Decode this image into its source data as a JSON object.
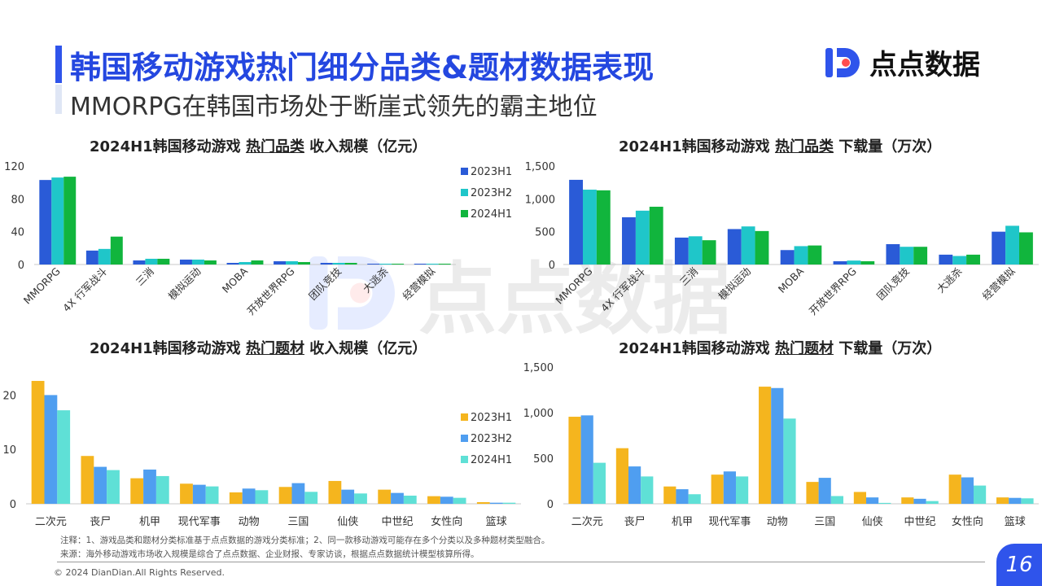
{
  "header": {
    "title": "韩国移动游戏热门细分品类&题材数据表现",
    "subtitle": "MMORPG在韩国市场处于断崖式领先的霸主地位"
  },
  "logo": {
    "text": "点点数据",
    "icon": "dd-logo-icon",
    "color": "#2f54eb"
  },
  "watermark": {
    "text": "点点数据"
  },
  "colors": {
    "blue_dark": "#2a5bd7",
    "cyan": "#1fc6c9",
    "green": "#11b53d",
    "orange": "#f5b51e",
    "blue_light": "#4f9ef0",
    "teal": "#5fe0d6"
  },
  "chart_titles": [
    {
      "pre": "2024H1韩国移动游戏 ",
      "mid": "热门品类",
      "post": " 收入规模（亿元）"
    },
    {
      "pre": "2024H1韩国移动游戏 ",
      "mid": "热门品类",
      "post": " 下载量（万次）"
    },
    {
      "pre": "2024H1韩国移动游戏 ",
      "mid": "热门题材",
      "post": " 收入规模（亿元）"
    },
    {
      "pre": "2024H1韩国移动游戏 ",
      "mid": "热门题材",
      "post": " 下载量（万次）"
    }
  ],
  "chart_data": [
    {
      "type": "bar",
      "title": "2024H1韩国移动游戏 热门品类 收入规模（亿元）",
      "categories": [
        "MMORPG",
        "4X 行军战斗",
        "三消",
        "模拟运动",
        "MOBA",
        "开放世界RPG",
        "团队竞技",
        "大逃杀",
        "经营模拟"
      ],
      "series": [
        {
          "name": "2023H1",
          "values": [
            103,
            17,
            5,
            6,
            2,
            4,
            2,
            1,
            1
          ]
        },
        {
          "name": "2023H2",
          "values": [
            106,
            19,
            7,
            6,
            3,
            4,
            2,
            1,
            1
          ]
        },
        {
          "name": "2024H1",
          "values": [
            107,
            34,
            7,
            5,
            5,
            3,
            2,
            1,
            1
          ]
        }
      ],
      "yticks": [
        0,
        40,
        80,
        120
      ],
      "ylim": [
        0,
        120
      ],
      "legend": "right"
    },
    {
      "type": "bar",
      "title": "2024H1韩国移动游戏 热门品类 下载量（万次）",
      "categories": [
        "MMORPG",
        "4X 行军战斗",
        "三消",
        "模拟运动",
        "MOBA",
        "开放世界RPG",
        "团队竞技",
        "大逃杀",
        "经营模拟"
      ],
      "series": [
        {
          "name": "2023H1",
          "values": [
            1290,
            720,
            410,
            540,
            220,
            50,
            310,
            150,
            500
          ]
        },
        {
          "name": "2023H2",
          "values": [
            1140,
            820,
            430,
            580,
            280,
            60,
            270,
            130,
            590
          ]
        },
        {
          "name": "2024H1",
          "values": [
            1130,
            880,
            370,
            510,
            290,
            50,
            270,
            150,
            490
          ]
        }
      ],
      "yticks": [
        0,
        500,
        1000,
        1500
      ],
      "ytick_labels": [
        "0",
        "500",
        "1,000",
        "1,500"
      ],
      "ylim": [
        0,
        1500
      ]
    },
    {
      "type": "bar",
      "title": "2024H1韩国移动游戏 热门题材 收入规模（亿元）",
      "categories": [
        "二次元",
        "丧尸",
        "机甲",
        "现代军事",
        "动物",
        "三国",
        "仙侠",
        "中世纪",
        "女性向",
        "篮球"
      ],
      "series": [
        {
          "name": "2023H1",
          "values": [
            22.6,
            8.8,
            4.7,
            3.7,
            2.1,
            3.1,
            4.2,
            2.6,
            1.4,
            0.3
          ]
        },
        {
          "name": "2023H2",
          "values": [
            20.0,
            6.8,
            6.3,
            3.5,
            2.8,
            3.8,
            2.6,
            2.0,
            1.3,
            0.2
          ]
        },
        {
          "name": "2024H1",
          "values": [
            17.2,
            6.2,
            5.1,
            3.2,
            2.5,
            2.2,
            1.9,
            1.5,
            1.1,
            0.2
          ]
        }
      ],
      "yticks": [
        0,
        10,
        20
      ],
      "ylim": [
        0,
        25
      ],
      "legend": "right"
    },
    {
      "type": "bar",
      "title": "2024H1韩国移动游戏 热门题材 下载量（万次）",
      "categories": [
        "二次元",
        "丧尸",
        "机甲",
        "现代军事",
        "动物",
        "三国",
        "仙侠",
        "中世纪",
        "女性向",
        "篮球"
      ],
      "series": [
        {
          "name": "2023H1",
          "values": [
            955,
            610,
            190,
            320,
            1285,
            240,
            130,
            70,
            320,
            70
          ]
        },
        {
          "name": "2023H2",
          "values": [
            970,
            410,
            160,
            355,
            1270,
            285,
            70,
            55,
            290,
            65
          ]
        },
        {
          "name": "2024H1",
          "values": [
            450,
            300,
            105,
            300,
            935,
            85,
            10,
            30,
            200,
            60
          ]
        }
      ],
      "yticks": [
        0,
        500,
        1000,
        1500
      ],
      "ytick_labels": [
        "0",
        "500",
        "1,000",
        "1,500"
      ],
      "ylim": [
        0,
        1500
      ]
    }
  ],
  "notes": {
    "note1": "注释：1、游戏品类和题材分类标准基于点点数据的游戏分类标准；2、同一款移动游戏可能存在多个分类以及多种题材类型融合。",
    "note2": "来源：海外移动游戏市场收入规模是综合了点点数据、企业财报、专家访谈，根据点点数据统计模型核算所得。"
  },
  "footer": {
    "copyright": "© 2024 DianDian.All Rights Reserved.",
    "page": "16"
  }
}
